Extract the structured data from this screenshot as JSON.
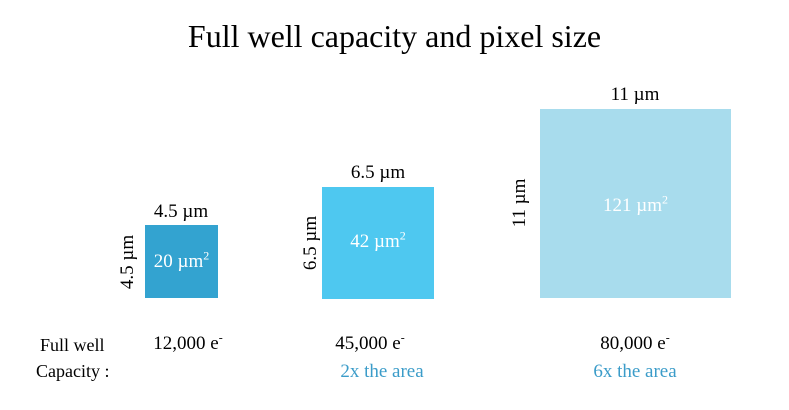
{
  "title": "Full well capacity and pixel size",
  "row_label": {
    "line1": "Full well",
    "line2": "Capacity :"
  },
  "pixels": [
    {
      "side": "4.5 µm",
      "area_value": "20 µm",
      "area_exp": "2",
      "capacity": "12,000 e",
      "capacity_sup": "-",
      "note": "",
      "color": "#33a3d0"
    },
    {
      "side": "6.5 µm",
      "area_value": "42 µm",
      "area_exp": "2",
      "capacity": "45,000 e",
      "capacity_sup": "-",
      "note": "2x the area",
      "color": "#4ec8f0"
    },
    {
      "side": "11 µm",
      "area_value": "121 µm",
      "area_exp": "2",
      "capacity": "80,000 e",
      "capacity_sup": "-",
      "note": "6x the area",
      "color": "#a8dced"
    }
  ],
  "note_color": "#3b9cc9"
}
